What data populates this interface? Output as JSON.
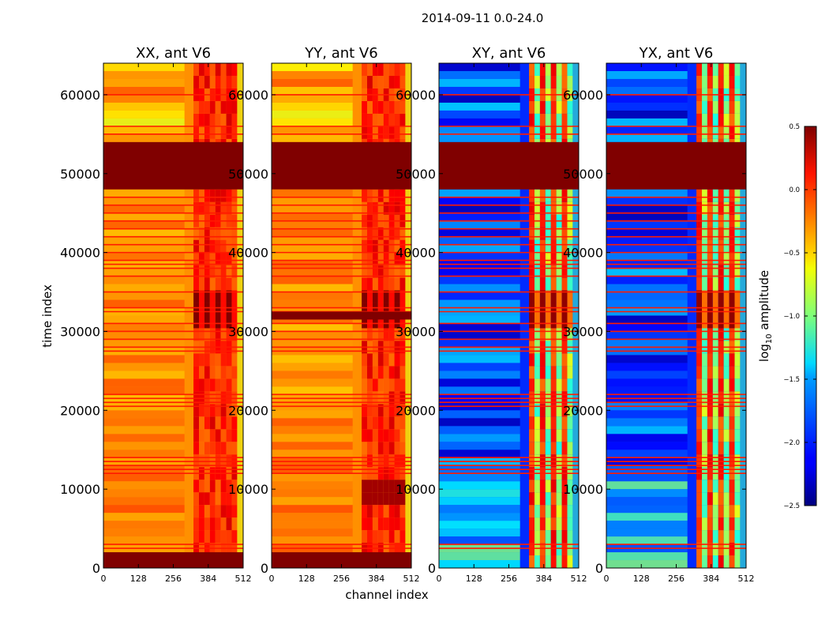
{
  "chart_data": {
    "type": "heatmap",
    "title": "2014-09-11 0.0-24.0",
    "xlabel": "channel index",
    "ylabel": "time index",
    "xlim": [
      0,
      512
    ],
    "ylim": [
      0,
      64000
    ],
    "x_ticks": [
      "0",
      "128",
      "256",
      "384",
      "512"
    ],
    "y_ticks": [
      "0",
      "10000",
      "20000",
      "30000",
      "40000",
      "50000",
      "60000"
    ],
    "x_tick_values": [
      0,
      128,
      256,
      384,
      512
    ],
    "y_tick_values": [
      0,
      10000,
      20000,
      30000,
      40000,
      50000,
      60000
    ],
    "colorbar": {
      "label": "log10 amplitude",
      "range": [
        -2.5,
        0.5
      ],
      "tick_values": [
        0.5,
        0.0,
        -0.5,
        -1.0,
        -1.5,
        -2.0,
        -2.5
      ],
      "ticks": [
        "0.5",
        "0.0",
        "−0.5",
        "−1.0",
        "−1.5",
        "−2.0",
        "−2.5"
      ],
      "colormap": "jet"
    },
    "panels": [
      {
        "title": "XX, ant V6",
        "kind": "parallel",
        "background_log10": -0.3,
        "flagged_time_ranges": [
          [
            48000,
            54000
          ],
          [
            0,
            2000
          ]
        ],
        "bright_channel_range": [
          330,
          490
        ]
      },
      {
        "title": "YY, ant V6",
        "kind": "parallel",
        "background_log10": -0.3,
        "flagged_time_ranges": [
          [
            48000,
            54000
          ],
          [
            31500,
            32500
          ],
          [
            0,
            2000
          ]
        ],
        "bright_channel_range": [
          330,
          490
        ]
      },
      {
        "title": "XY, ant V6",
        "kind": "cross",
        "background_log10": -2.0,
        "flagged_time_ranges": [
          [
            48000,
            54000
          ]
        ],
        "bright_channel_range": [
          330,
          490
        ]
      },
      {
        "title": "YX, ant V6",
        "kind": "cross",
        "background_log10": -2.0,
        "flagged_time_ranges": [
          [
            48000,
            54000
          ]
        ],
        "bright_channel_range": [
          330,
          490
        ]
      }
    ],
    "flagged_time_lines": [
      2500,
      3000,
      12000,
      12500,
      13000,
      13500,
      14000,
      20500,
      21000,
      21500,
      22000,
      27500,
      28000,
      29000,
      30000,
      31000,
      32500,
      33000,
      35000,
      37000,
      38000,
      38500,
      39000,
      40000,
      41000,
      42000,
      43000,
      44000,
      45000,
      46000,
      47000,
      55000,
      56000,
      60000
    ]
  }
}
